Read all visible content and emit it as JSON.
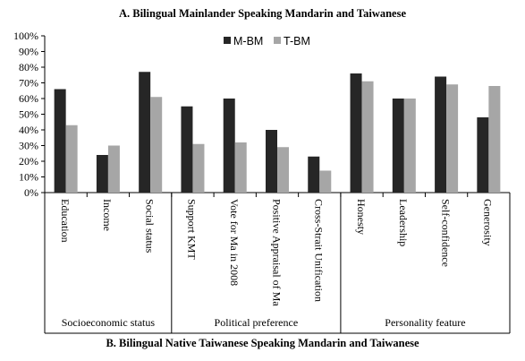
{
  "chart_data": {
    "type": "bar",
    "title": "A. Bilingual Mainlander Speaking Mandarin and Taiwanese",
    "ylim": [
      0,
      100
    ],
    "y_ticks": [
      "0%",
      "10%",
      "20%",
      "30%",
      "40%",
      "50%",
      "60%",
      "70%",
      "80%",
      "90%",
      "100%"
    ],
    "categories": [
      "Education",
      "Income",
      "Social status",
      "Support KMT",
      "Vote for Ma in 2008",
      "Positive Appraisal of Ma",
      "Cross-Strait Unification",
      "Honesty",
      "Leadership",
      "Self-confidence",
      "Generosity"
    ],
    "series": [
      {
        "name": "M-BM",
        "color": "#262626",
        "values": [
          66,
          24,
          77,
          55,
          60,
          40,
          23,
          76,
          60,
          74,
          48
        ]
      },
      {
        "name": "T-BM",
        "color": "#a6a6a6",
        "values": [
          43,
          30,
          61,
          31,
          32,
          29,
          14,
          71,
          60,
          69,
          68
        ]
      }
    ],
    "groups": [
      {
        "label": "Socioeconomic status",
        "count": 3
      },
      {
        "label": "Political preference",
        "count": 4
      },
      {
        "label": "Personality feature",
        "count": 4
      }
    ],
    "legend_position": "top-center",
    "grid": false
  },
  "bottom_title": "B. Bilingual Native Taiwanese Speaking Mandarin and Taiwanese"
}
